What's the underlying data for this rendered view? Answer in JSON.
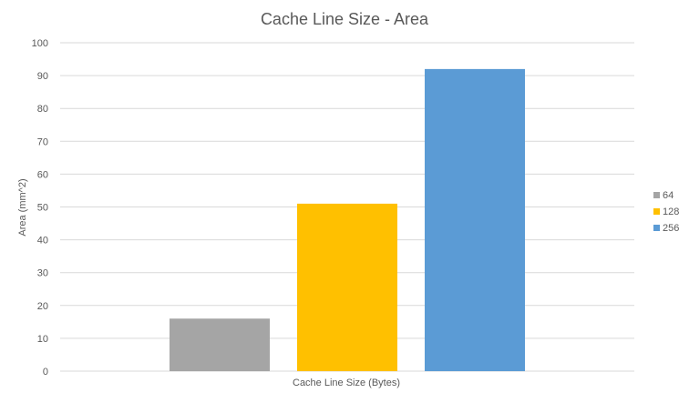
{
  "chart_data": {
    "type": "bar",
    "title": "Cache Line Size - Area",
    "xlabel": "Cache Line Size (Bytes)",
    "ylabel": "Area (mm^2)",
    "ylim": [
      0,
      100
    ],
    "yticks": [
      "0",
      "10",
      "20",
      "30",
      "40",
      "50",
      "60",
      "70",
      "80",
      "90",
      "100"
    ],
    "grid": true,
    "legend_position": "right",
    "categories": [
      ""
    ],
    "series": [
      {
        "name": "64",
        "values": [
          16
        ],
        "color": "#a5a5a5"
      },
      {
        "name": "128",
        "values": [
          51
        ],
        "color": "#ffc000"
      },
      {
        "name": "256",
        "values": [
          92
        ],
        "color": "#5b9bd5"
      }
    ]
  }
}
